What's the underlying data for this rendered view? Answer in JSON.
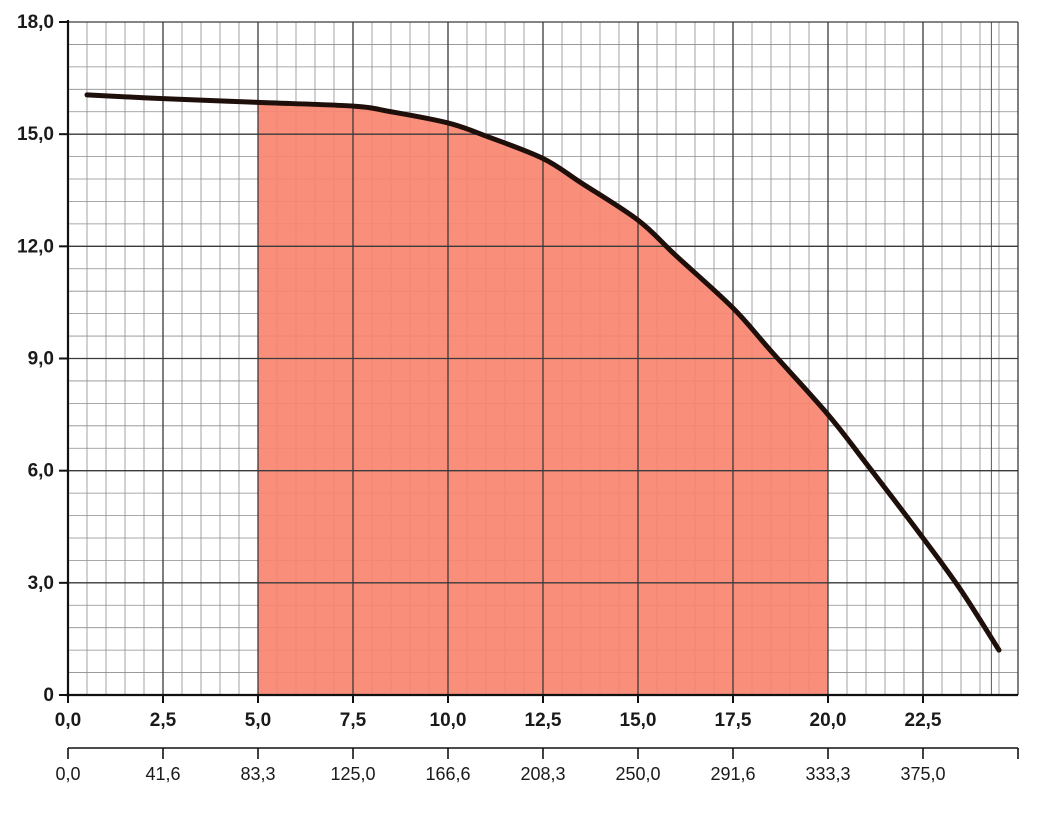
{
  "chart_data": {
    "type": "line",
    "title": "",
    "xlabel": "",
    "ylabel": "",
    "xlim": [
      0,
      25
    ],
    "ylim": [
      0,
      18
    ],
    "y_ticks": [
      {
        "value": 0,
        "label": "0"
      },
      {
        "value": 3,
        "label": "3,0"
      },
      {
        "value": 6,
        "label": "6,0"
      },
      {
        "value": 9,
        "label": "9,0"
      },
      {
        "value": 12,
        "label": "12,0"
      },
      {
        "value": 15,
        "label": "15,0"
      },
      {
        "value": 18,
        "label": "18,0"
      }
    ],
    "x_ticks": [
      {
        "value": 0,
        "label": "0,0"
      },
      {
        "value": 2.5,
        "label": "2,5"
      },
      {
        "value": 5,
        "label": "5,0"
      },
      {
        "value": 7.5,
        "label": "7,5"
      },
      {
        "value": 10,
        "label": "10,0"
      },
      {
        "value": 12.5,
        "label": "12,5"
      },
      {
        "value": 15,
        "label": "15,0"
      },
      {
        "value": 17.5,
        "label": "17,5"
      },
      {
        "value": 20,
        "label": "20,0"
      },
      {
        "value": 22.5,
        "label": "22,5"
      }
    ],
    "secondary_x_ticks": [
      {
        "value": 0,
        "label": "0,0"
      },
      {
        "value": 2.5,
        "label": "41,6"
      },
      {
        "value": 5,
        "label": "83,3"
      },
      {
        "value": 7.5,
        "label": "125,0"
      },
      {
        "value": 10,
        "label": "166,6"
      },
      {
        "value": 12.5,
        "label": "208,3"
      },
      {
        "value": 15,
        "label": "250,0"
      },
      {
        "value": 17.5,
        "label": "291,6"
      },
      {
        "value": 20,
        "label": "333,3"
      },
      {
        "value": 22.5,
        "label": "375,0"
      }
    ],
    "grid": true,
    "minor_grid_step_x": 0.5,
    "minor_grid_step_y": 0.6,
    "series": [
      {
        "x": [
          0.5,
          2.5,
          5.0,
          7.5,
          8.5,
          10.0,
          11.0,
          12.5,
          13.5,
          15.0,
          16.0,
          17.5,
          18.5,
          20.0,
          21.0,
          22.5,
          23.5,
          24.5
        ],
        "y": [
          16.05,
          15.95,
          15.85,
          15.75,
          15.6,
          15.3,
          14.95,
          14.35,
          13.7,
          12.7,
          11.75,
          10.35,
          9.2,
          7.5,
          6.2,
          4.2,
          2.8,
          1.2
        ],
        "color": "#1f0f0a"
      }
    ],
    "highlight_range": {
      "x_from": 5.0,
      "x_to": 20.0,
      "color": "#f98470"
    }
  }
}
